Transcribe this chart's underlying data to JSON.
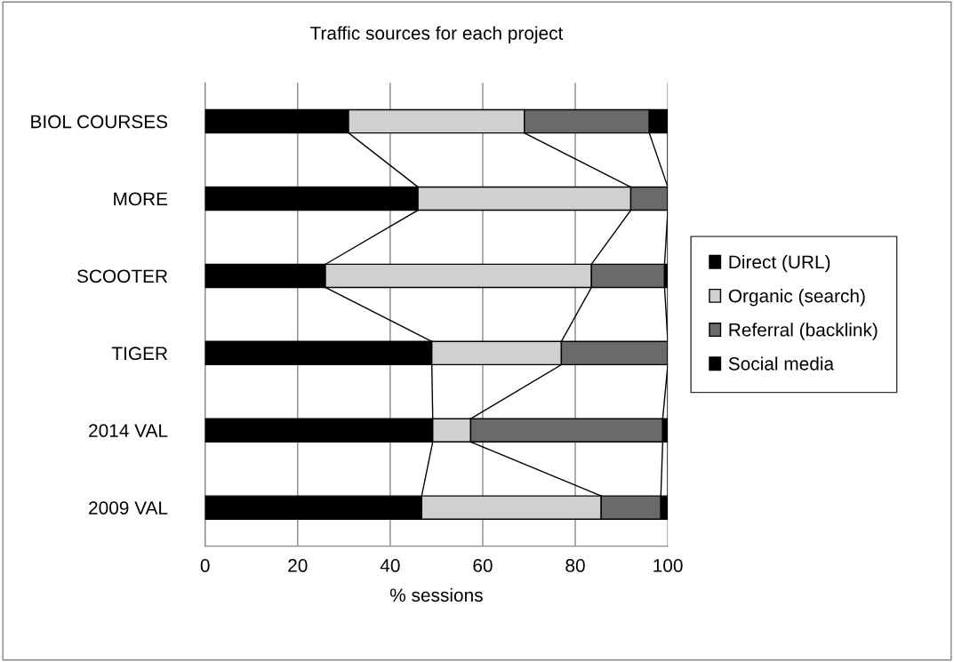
{
  "chart_data": {
    "type": "bar",
    "orientation": "horizontal",
    "stacked": true,
    "title": "Traffic sources for each project",
    "xlabel": "% sessions",
    "categories": [
      "BIOL COURSES",
      "MORE",
      "SCOOTER",
      "TIGER",
      "2014 VAL",
      "2009 VAL"
    ],
    "series": [
      {
        "name": "Direct (URL)",
        "color": "#000000",
        "values": [
          31,
          46,
          26,
          49,
          49.2,
          46.8
        ]
      },
      {
        "name": "Organic (search)",
        "color": "#d0d0d0",
        "values": [
          38,
          46,
          57.5,
          28,
          8.2,
          38.8
        ]
      },
      {
        "name": "Referral (backlink)",
        "color": "#6a6a6a",
        "values": [
          27,
          8,
          15.8,
          23,
          41.5,
          12.9
        ]
      },
      {
        "name": "Social media",
        "color": "#000000",
        "values": [
          4,
          0,
          0.7,
          0,
          1.1,
          1.5
        ]
      }
    ],
    "xlim": [
      0,
      100
    ],
    "xticks": [
      0,
      20,
      40,
      60,
      80,
      100
    ],
    "grid": "x",
    "legend": "right"
  }
}
